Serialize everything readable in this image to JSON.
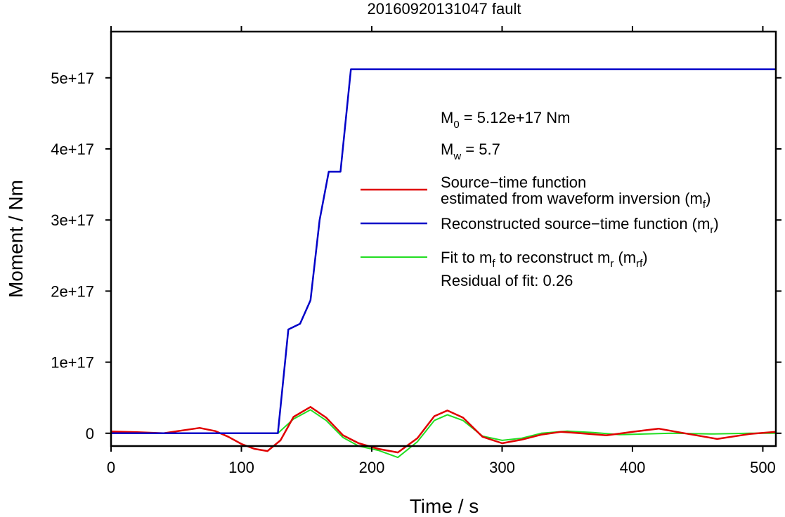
{
  "chart_data": {
    "type": "line",
    "title": "20160920131047 fault",
    "xlabel": "Time / s",
    "ylabel": "Moment / Nm",
    "xlim": [
      0,
      510
    ],
    "ylim": [
      -1.8e+16,
      5.65e+17
    ],
    "x_ticks": [
      0,
      100,
      200,
      300,
      400,
      500
    ],
    "x_tick_labels": [
      "0",
      "100",
      "200",
      "300",
      "400",
      "500"
    ],
    "y_ticks": [
      0,
      1e+17,
      2e+17,
      3e+17,
      4e+17,
      5e+17
    ],
    "y_tick_labels": [
      "0",
      "1e+17",
      "2e+17",
      "3e+17",
      "4e+17",
      "5e+17"
    ],
    "grid": false,
    "legend_position": "right",
    "annotations": {
      "m0_prefix": "M",
      "m0_sub": "0",
      "m0_rest": " = 5.12e+17 Nm",
      "mw_prefix": "M",
      "mw_sub": "w",
      "mw_rest": " = 5.7",
      "residual": "Residual of fit: 0.26"
    },
    "legend": [
      {
        "color": "#e00000",
        "line1": "Source−time function",
        "line2_a": "estimated from waveform inversion (m",
        "line2_sub": "f",
        "line2_b": ")"
      },
      {
        "color": "#0000c8",
        "line1_a": "Reconstructed source−time function (m",
        "line1_sub": "r",
        "line1_b": ")"
      },
      {
        "color": "#22dd22",
        "line1_a": "Fit to m",
        "line1_sub1": "f",
        "line1_b": " to reconstruct m",
        "line1_sub2": "r",
        "line1_c": " (m",
        "line1_sub3": "rf",
        "line1_d": ")"
      }
    ],
    "series": [
      {
        "color": "#0000c8",
        "x": [
          0,
          128,
          136,
          145,
          153,
          160,
          167,
          176,
          184,
          510
        ],
        "y": [
          0,
          0,
          1.46e+17,
          1.54e+17,
          1.87e+17,
          3e+17,
          3.68e+17,
          3.68e+17,
          5.12e+17,
          5.12e+17
        ]
      },
      {
        "color": "#e00000",
        "x": [
          0,
          20,
          40,
          55,
          68,
          80,
          90,
          100,
          110,
          120,
          130,
          140,
          153,
          165,
          178,
          190,
          205,
          220,
          235,
          248,
          258,
          270,
          285,
          300,
          315,
          330,
          345,
          360,
          380,
          400,
          420,
          440,
          465,
          490,
          510
        ],
        "y": [
          2500000000000000.0,
          1500000000000000.0,
          0,
          4000000000000000.0,
          7500000000000000.0,
          3000000000000000.0,
          -5000000000000000.0,
          -1.5e+16,
          -2.2e+16,
          -2.5e+16,
          -1e+16,
          2.3e+16,
          3.7e+16,
          2.2e+16,
          -3000000000000000.0,
          -1.4e+16,
          -2.2e+16,
          -2.7e+16,
          -7000000000000000.0,
          2.4e+16,
          3.2e+16,
          2.2e+16,
          -5000000000000000.0,
          -1.4e+16,
          -9000000000000000.0,
          -2000000000000000.0,
          2000000000000000.0,
          0,
          -3000000000000000.0,
          2000000000000000.0,
          6500000000000000.0,
          0,
          -8000000000000000.0,
          -1000000000000000.0,
          2000000000000000.0
        ]
      },
      {
        "color": "#22dd22",
        "x": [
          0,
          128,
          140,
          153,
          165,
          178,
          190,
          205,
          220,
          235,
          248,
          258,
          270,
          285,
          300,
          315,
          330,
          350,
          370,
          390,
          410,
          430,
          460,
          490,
          510
        ],
        "y": [
          0,
          0,
          2e+16,
          3.3e+16,
          1.8e+16,
          -6000000000000000.0,
          -1.8e+16,
          -2.4e+16,
          -3.4e+16,
          -1.2e+16,
          1.8e+16,
          2.6e+16,
          1.8e+16,
          -4000000000000000.0,
          -1e+16,
          -7000000000000000.0,
          0,
          3000000000000000.0,
          1000000000000000.0,
          -2000000000000000.0,
          -1000000000000000.0,
          0,
          -1000000000000000.0,
          0,
          0
        ]
      }
    ]
  }
}
